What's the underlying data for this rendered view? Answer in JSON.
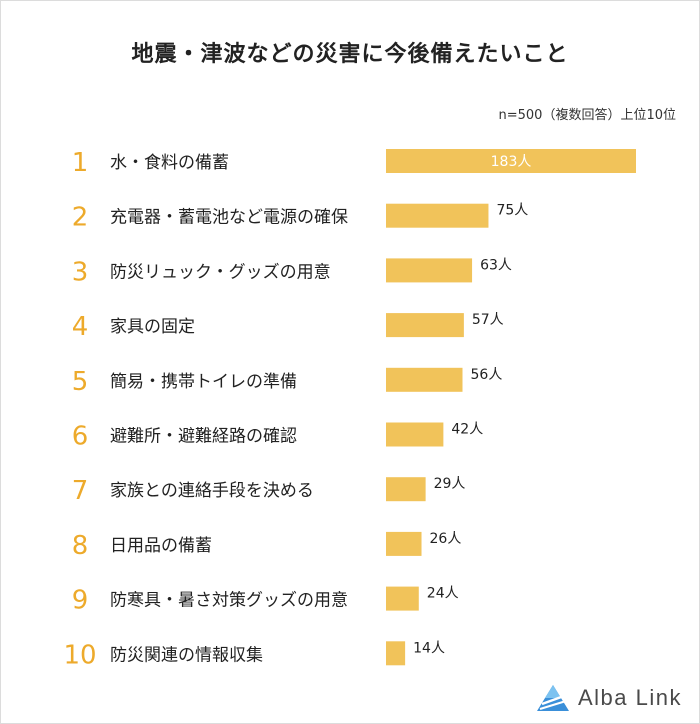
{
  "title": "地震・津波などの災害に今後備えたいこと",
  "note": "n=500（複数回答）上位10位",
  "brand": {
    "name": "Alba Link"
  },
  "colors": {
    "bar": "#F1C35A",
    "rank": "#EDAA2B",
    "label_inside": "#ffffff",
    "text": "#222222"
  },
  "chart_data": {
    "type": "bar",
    "orientation": "horizontal",
    "ranks": [
      "1",
      "2",
      "3",
      "4",
      "5",
      "6",
      "7",
      "8",
      "9",
      "10"
    ],
    "categories": [
      "水・食料の備蓄",
      "充電器・蓄電池など電源の確保",
      "防災リュック・グッズの用意",
      "家具の固定",
      "簡易・携帯トイレの準備",
      "避難所・避難経路の確認",
      "家族との連絡手段を決める",
      "日用品の備蓄",
      "防寒具・暑さ対策グッズの用意",
      "防災関連の情報収集"
    ],
    "values": [
      183,
      75,
      63,
      57,
      56,
      42,
      29,
      26,
      24,
      14
    ],
    "value_labels": [
      "183人",
      "75人",
      "63人",
      "57人",
      "56人",
      "42人",
      "29人",
      "26人",
      "24人",
      "14人"
    ],
    "unit": "人",
    "xlim": [
      0,
      183
    ]
  }
}
